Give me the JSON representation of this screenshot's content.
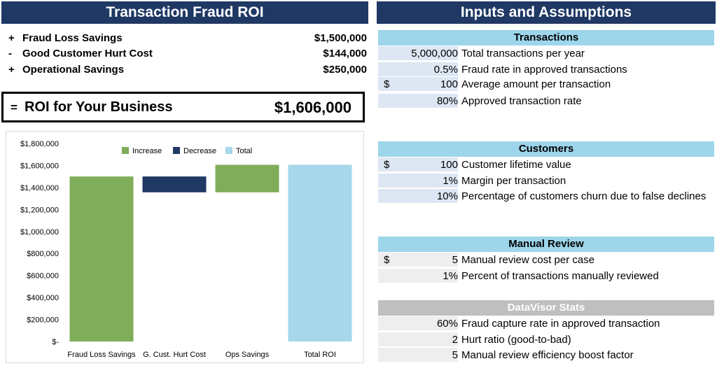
{
  "left_header": "Transaction Fraud ROI",
  "right_header": "Inputs and Assumptions",
  "roi_lines": [
    {
      "sign": "+",
      "label": "Fraud Loss Savings",
      "value": "$1,500,000"
    },
    {
      "sign": "-",
      "label": "Good Customer Hurt Cost",
      "value": "$144,000"
    },
    {
      "sign": "+",
      "label": "Operational Savings",
      "value": "$250,000"
    }
  ],
  "roi_total": {
    "sign": "=",
    "label": "ROI for Your Business",
    "value": "$1,606,000"
  },
  "sections": {
    "transactions": {
      "title": "Transactions",
      "rows": [
        {
          "currency": "",
          "value": "5,000,000",
          "desc": "Total transactions per year"
        },
        {
          "currency": "",
          "value": "0.5%",
          "desc": "Fraud rate in approved transactions"
        },
        {
          "currency": "$",
          "value": "100",
          "desc": "Average amount per transaction"
        },
        {
          "currency": "",
          "value": "80%",
          "desc": "Approved transaction rate"
        }
      ]
    },
    "customers": {
      "title": "Customers",
      "rows": [
        {
          "currency": "$",
          "value": "100",
          "desc": "Customer lifetime value"
        },
        {
          "currency": "",
          "value": "1%",
          "desc": "Margin per transaction"
        },
        {
          "currency": "",
          "value": "10%",
          "desc": "Percentage of customers churn due to false declines"
        }
      ]
    },
    "manual_review": {
      "title": "Manual Review",
      "rows": [
        {
          "currency": "$",
          "value": "5",
          "desc": "Manual review cost per case"
        },
        {
          "currency": "",
          "value": "1%",
          "desc": "Percent of transactions manually reviewed"
        }
      ]
    },
    "datavisor": {
      "title": "DataVisor Stats",
      "rows": [
        {
          "currency": "",
          "value": "60%",
          "desc": "Fraud capture rate in approved transaction"
        },
        {
          "currency": "",
          "value": "2",
          "desc": "Hurt ratio (good-to-bad)"
        },
        {
          "currency": "",
          "value": "5",
          "desc": "Manual review efficiency boost factor"
        }
      ]
    }
  },
  "chart_data": {
    "type": "bar",
    "categories": [
      "Fraud Loss Savings",
      "G. Cust. Hurt Cost",
      "Ops Savings",
      "Total ROI"
    ],
    "legend": [
      "Increase",
      "Decrease",
      "Total"
    ],
    "bars": [
      {
        "kind": "Increase",
        "base": 0,
        "top": 1500000
      },
      {
        "kind": "Decrease",
        "base": 1356000,
        "top": 1500000
      },
      {
        "kind": "Increase",
        "base": 1356000,
        "top": 1606000
      },
      {
        "kind": "Total",
        "base": 0,
        "top": 1606000
      }
    ],
    "ylim": [
      0,
      1800000
    ],
    "yticks": [
      "$-",
      "$200,000",
      "$400,000",
      "$600,000",
      "$800,000",
      "$1,000,000",
      "$1,200,000",
      "$1,400,000",
      "$1,600,000",
      "$1,800,000"
    ],
    "colors": {
      "Increase": "#7fad5a",
      "Decrease": "#203864",
      "Total": "#a6d7ea"
    },
    "legend_position": "top",
    "grid": false
  },
  "colors": {
    "header": "#1f3864",
    "section": "#9dd5ea",
    "section_gray": "#bfbfbf",
    "cell_blue": "#dde7f3",
    "cell_gray": "#eeeeee"
  }
}
